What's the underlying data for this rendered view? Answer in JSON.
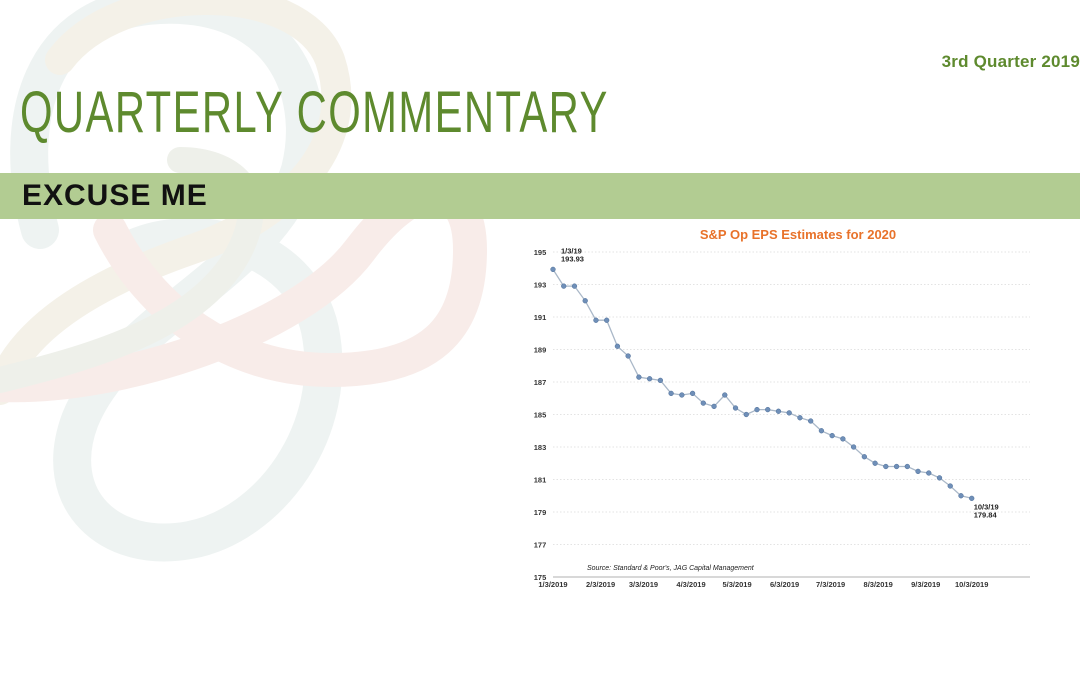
{
  "header": {
    "quarter": "3rd Quarter 2019",
    "title": "QUARTERLY COMMENTARY",
    "section": "EXCUSE ME"
  },
  "colors": {
    "brand_green": "#5e8a2e",
    "band_green": "#b2cc92",
    "chart_title": "#e8722a",
    "series_line": "#aab8c8",
    "series_marker": "#6f8fb8"
  },
  "chart_data": {
    "type": "line",
    "title": "S&P Op EPS Estimates for 2020",
    "xlabel": "",
    "ylabel": "",
    "ylim": [
      175,
      195
    ],
    "yticks": [
      175,
      177,
      179,
      181,
      183,
      185,
      187,
      189,
      191,
      193,
      195
    ],
    "xlim": [
      "2019-01-03",
      "2019-11-10"
    ],
    "xticks": [
      "1/3/2019",
      "2/3/2019",
      "3/3/2019",
      "4/3/2019",
      "5/3/2019",
      "6/3/2019",
      "7/3/2019",
      "8/3/2019",
      "9/3/2019",
      "10/3/2019"
    ],
    "grid": "horizontal dotted",
    "legend": "none",
    "series": [
      {
        "x": [
          "2019-01-03",
          "2019-01-10",
          "2019-01-17",
          "2019-01-24",
          "2019-01-31",
          "2019-02-07",
          "2019-02-14",
          "2019-02-21",
          "2019-02-28",
          "2019-03-07",
          "2019-03-14",
          "2019-03-21",
          "2019-03-28",
          "2019-04-04",
          "2019-04-11",
          "2019-04-18",
          "2019-04-25",
          "2019-05-02",
          "2019-05-09",
          "2019-05-16",
          "2019-05-23",
          "2019-05-30",
          "2019-06-06",
          "2019-06-13",
          "2019-06-20",
          "2019-06-27",
          "2019-07-04",
          "2019-07-11",
          "2019-07-18",
          "2019-07-25",
          "2019-08-01",
          "2019-08-08",
          "2019-08-15",
          "2019-08-22",
          "2019-08-29",
          "2019-09-05",
          "2019-09-12",
          "2019-09-19",
          "2019-09-26",
          "2019-10-03"
        ],
        "y": [
          193.93,
          192.9,
          192.9,
          192.0,
          190.8,
          190.8,
          189.2,
          188.6,
          187.3,
          187.2,
          187.1,
          186.3,
          186.2,
          186.3,
          185.7,
          185.5,
          186.2,
          185.4,
          185.0,
          185.3,
          185.3,
          185.2,
          185.1,
          184.8,
          184.6,
          184.0,
          183.7,
          183.5,
          183.0,
          182.4,
          182.0,
          181.8,
          181.8,
          181.8,
          181.5,
          181.4,
          181.1,
          180.6,
          180.0,
          179.84
        ]
      }
    ],
    "annotations": [
      {
        "x": "2019-01-03",
        "y": 193.93,
        "lines": [
          "1/3/19",
          "193.93"
        ]
      },
      {
        "x": "2019-10-03",
        "y": 179.84,
        "lines": [
          "10/3/19",
          "179.84"
        ]
      }
    ],
    "source": "Source: Standard & Poor's, JAG Capital Management"
  }
}
